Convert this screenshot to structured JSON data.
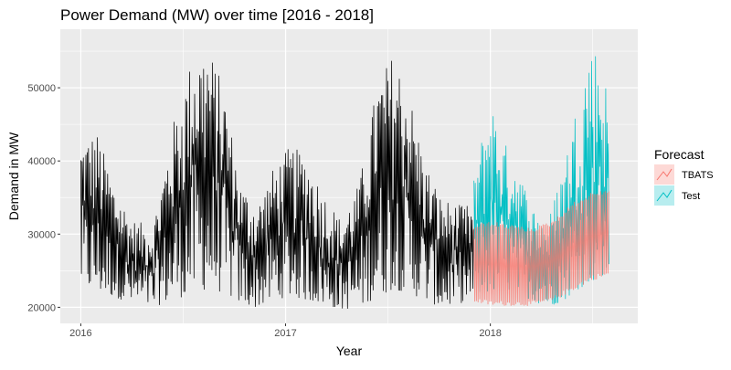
{
  "chart_data": {
    "type": "line",
    "title": "Power Demand (MW) over time [2016 - 2018]",
    "xlabel": "Year",
    "ylabel": "Demand in MW",
    "x_ticks": [
      {
        "value": 2016,
        "label": "2016"
      },
      {
        "value": 2017,
        "label": "2017"
      },
      {
        "value": 2018,
        "label": "2018"
      }
    ],
    "y_ticks": [
      {
        "value": 20000,
        "label": "20000"
      },
      {
        "value": 30000,
        "label": "30000"
      },
      {
        "value": 40000,
        "label": "40000"
      },
      {
        "value": 50000,
        "label": "50000"
      }
    ],
    "xlim": [
      2015.9,
      2018.72
    ],
    "ylim": [
      17800,
      58000
    ],
    "grid": true,
    "legend": {
      "title": "Forecast",
      "position": "right"
    },
    "series": [
      {
        "name": "",
        "role": "history",
        "color": "#000000",
        "x_start": 2016.0,
        "x_end": 2017.92,
        "envelope": [
          {
            "x": 2016.0,
            "low": 23000,
            "high": 43000
          },
          {
            "x": 2016.08,
            "low": 22000,
            "high": 44000
          },
          {
            "x": 2016.16,
            "low": 21500,
            "high": 37000
          },
          {
            "x": 2016.25,
            "low": 20500,
            "high": 32000
          },
          {
            "x": 2016.35,
            "low": 20000,
            "high": 31000
          },
          {
            "x": 2016.45,
            "low": 21000,
            "high": 45000
          },
          {
            "x": 2016.55,
            "low": 22000,
            "high": 55000
          },
          {
            "x": 2016.62,
            "low": 22500,
            "high": 56000
          },
          {
            "x": 2016.7,
            "low": 22000,
            "high": 50000
          },
          {
            "x": 2016.78,
            "low": 20500,
            "high": 37000
          },
          {
            "x": 2016.86,
            "low": 20000,
            "high": 34000
          },
          {
            "x": 2016.94,
            "low": 21000,
            "high": 39000
          },
          {
            "x": 2017.02,
            "low": 21500,
            "high": 42000
          },
          {
            "x": 2017.1,
            "low": 21000,
            "high": 41000
          },
          {
            "x": 2017.18,
            "low": 20500,
            "high": 36000
          },
          {
            "x": 2017.27,
            "low": 19700,
            "high": 32000
          },
          {
            "x": 2017.36,
            "low": 20000,
            "high": 37000
          },
          {
            "x": 2017.45,
            "low": 21500,
            "high": 51000
          },
          {
            "x": 2017.53,
            "low": 22500,
            "high": 55000
          },
          {
            "x": 2017.6,
            "low": 22000,
            "high": 50000
          },
          {
            "x": 2017.68,
            "low": 21000,
            "high": 40000
          },
          {
            "x": 2017.76,
            "low": 20000,
            "high": 35000
          },
          {
            "x": 2017.84,
            "low": 20500,
            "high": 34000
          },
          {
            "x": 2017.92,
            "low": 21000,
            "high": 34000
          }
        ]
      },
      {
        "name": "Test",
        "role": "test",
        "color": "#00BFC4",
        "x_start": 2017.92,
        "x_end": 2018.58,
        "envelope": [
          {
            "x": 2017.92,
            "low": 21500,
            "high": 38000
          },
          {
            "x": 2018.0,
            "low": 22000,
            "high": 49000
          },
          {
            "x": 2018.06,
            "low": 22500,
            "high": 43000
          },
          {
            "x": 2018.13,
            "low": 22000,
            "high": 40000
          },
          {
            "x": 2018.2,
            "low": 21000,
            "high": 34000
          },
          {
            "x": 2018.28,
            "low": 20000,
            "high": 31500
          },
          {
            "x": 2018.36,
            "low": 21000,
            "high": 40000
          },
          {
            "x": 2018.43,
            "low": 22500,
            "high": 49000
          },
          {
            "x": 2018.49,
            "low": 23500,
            "high": 56500
          },
          {
            "x": 2018.53,
            "low": 23500,
            "high": 55000
          },
          {
            "x": 2018.58,
            "low": 24000,
            "high": 49000
          }
        ]
      },
      {
        "name": "TBATS",
        "role": "forecast",
        "color": "#F8766D",
        "x_start": 2017.92,
        "x_end": 2018.58,
        "envelope": [
          {
            "x": 2017.92,
            "low": 20500,
            "high": 31500
          },
          {
            "x": 2018.0,
            "low": 20000,
            "high": 32000
          },
          {
            "x": 2018.1,
            "low": 20000,
            "high": 31500
          },
          {
            "x": 2018.2,
            "low": 20000,
            "high": 31000
          },
          {
            "x": 2018.3,
            "low": 20500,
            "high": 32000
          },
          {
            "x": 2018.4,
            "low": 22000,
            "high": 34500
          },
          {
            "x": 2018.5,
            "low": 23500,
            "high": 36000
          },
          {
            "x": 2018.58,
            "low": 24000,
            "high": 36500
          }
        ]
      }
    ]
  }
}
